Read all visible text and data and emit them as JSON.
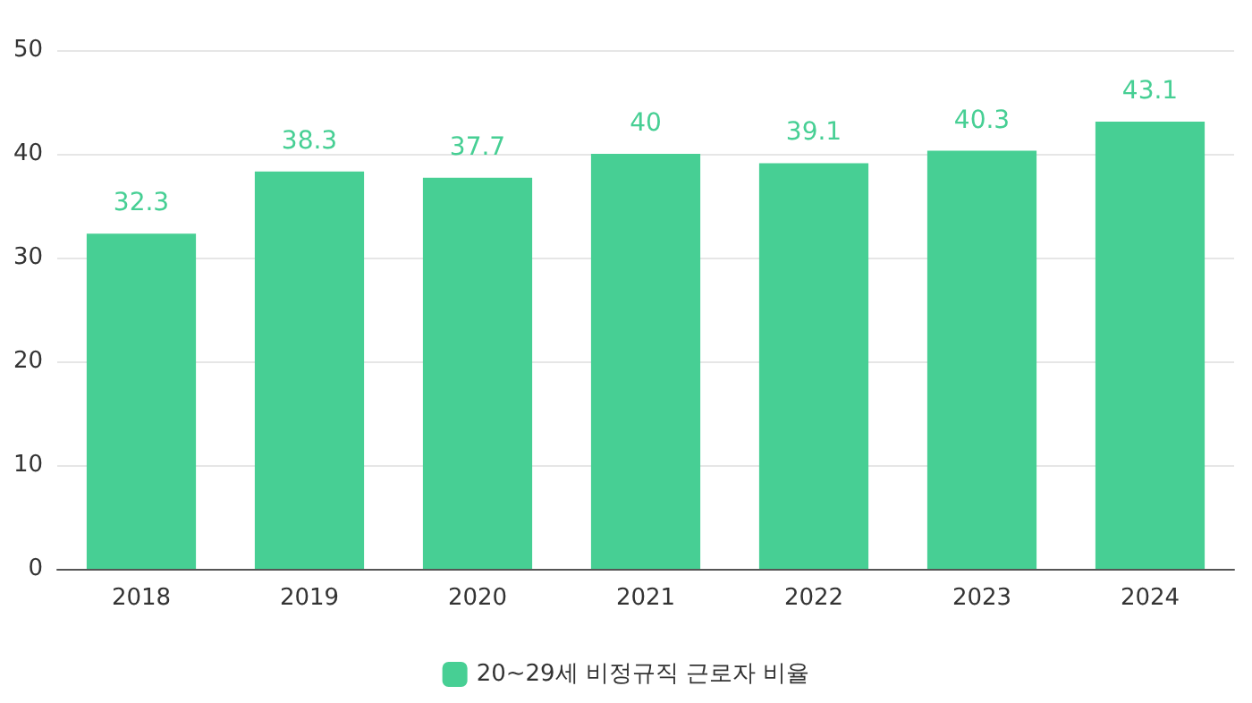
{
  "chart_data": {
    "type": "bar",
    "categories": [
      "2018",
      "2019",
      "2020",
      "2021",
      "2022",
      "2023",
      "2024"
    ],
    "series": [
      {
        "name": "20~29세 비정규직 근로자 비율",
        "color": "#47cf94",
        "values": [
          32.3,
          38.3,
          37.7,
          40,
          39.1,
          40.3,
          43.1
        ]
      }
    ],
    "ylim": [
      0,
      50
    ],
    "yticks": [
      0,
      10,
      20,
      30,
      40,
      50
    ],
    "grid": "y",
    "legend": "bottom",
    "data_labels": true
  }
}
